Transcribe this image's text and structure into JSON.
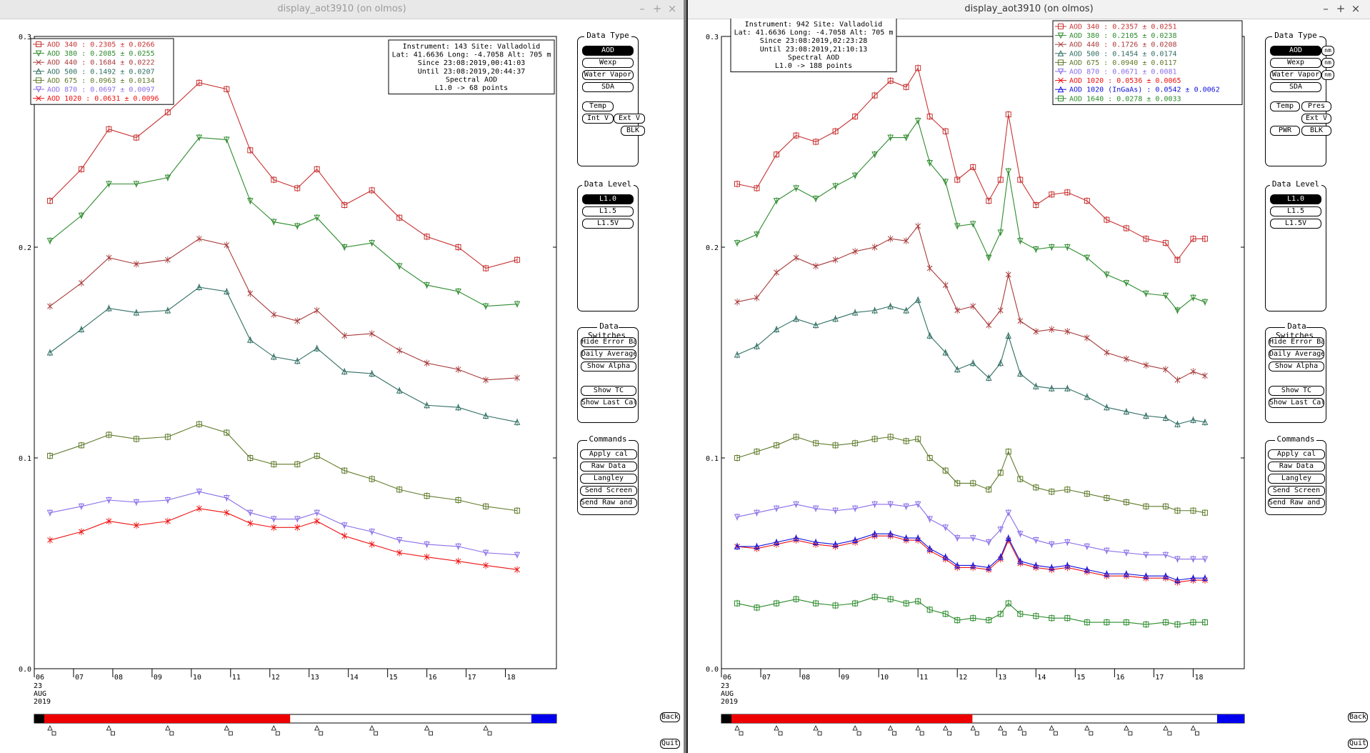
{
  "windows": [
    {
      "id": "L",
      "title": "display_aot3910 (on olmos)",
      "info": [
        "Instrument: 143 Site: Valladolid",
        "Lat: 41.6636 Long: -4.7058 Alt: 705 m",
        "Since 23:08:2019,00:41:03",
        "Until 23:08:2019,20:44:37",
        "Spectral AOD",
        "L1.0 -> 68 points"
      ],
      "legend": [
        {
          "text": "AOD 340   : 0.2305 ± 0.0266",
          "color": "#c83232",
          "marker": "square"
        },
        {
          "text": "AOD 380   : 0.2085 ± 0.0255",
          "color": "#2e8b2e",
          "marker": "tri-down"
        },
        {
          "text": "AOD 440   : 0.1684 ± 0.0222",
          "color": "#a83a3a",
          "marker": "x"
        },
        {
          "text": "AOD 500   : 0.1492 ± 0.0207",
          "color": "#2f6e62",
          "marker": "tri-up"
        },
        {
          "text": "AOD 675   : 0.0963 ± 0.0134",
          "color": "#5f7a2a",
          "marker": "square"
        },
        {
          "text": "AOD 870   : 0.0697 ± 0.0097",
          "color": "#8a6ee8",
          "marker": "tri-down"
        },
        {
          "text": "AOD 1020  : 0.0631 ± 0.0096",
          "color": "#ee1111",
          "marker": "x"
        }
      ],
      "show_nm_buttons": false,
      "data_type_buttons": [
        {
          "label": "AOD",
          "selected": true
        },
        {
          "label": "Wexp"
        },
        {
          "label": "Water Vapor"
        },
        {
          "label": "SDA"
        }
      ],
      "extra_buttons": [
        "Temp",
        "Int V",
        "Ext V",
        "BLK"
      ]
    },
    {
      "id": "R",
      "title": "display_aot3910 (on olmos)",
      "info": [
        "Instrument: 942 Site: Valladolid",
        "Lat: 41.6636 Long: -4.7058 Alt: 705 m",
        "Since 23:08:2019,02:23:28",
        "Until 23:08:2019,21:10:13",
        "Spectral AOD",
        "L1.0 -> 188 points"
      ],
      "legend": [
        {
          "text": "AOD 340   : 0.2357 ± 0.0251",
          "color": "#c83232",
          "marker": "square"
        },
        {
          "text": "AOD 380   : 0.2105 ± 0.0238",
          "color": "#2e8b2e",
          "marker": "tri-down"
        },
        {
          "text": "AOD 440   : 0.1726 ± 0.0208",
          "color": "#a83a3a",
          "marker": "x"
        },
        {
          "text": "AOD 500   : 0.1454 ± 0.0174",
          "color": "#2f6e62",
          "marker": "tri-up"
        },
        {
          "text": "AOD 675   : 0.0940 ± 0.0117",
          "color": "#5f7a2a",
          "marker": "square"
        },
        {
          "text": "AOD 870   : 0.0671 ± 0.0081",
          "color": "#8a6ee8",
          "marker": "tri-down"
        },
        {
          "text": "AOD 1020  : 0.0536 ± 0.0065",
          "color": "#ee1111",
          "marker": "x"
        },
        {
          "text": "AOD 1020 (InGaAs)  : 0.0542 ± 0.0062",
          "color": "#1111dd",
          "marker": "tri-up"
        },
        {
          "text": "AOD 1640  : 0.0278 ± 0.0033",
          "color": "#2a8a2a",
          "marker": "square"
        }
      ],
      "show_nm_buttons": true,
      "data_type_buttons": [
        {
          "label": "AOD",
          "selected": true
        },
        {
          "label": "Wexp"
        },
        {
          "label": "Water Vapor"
        },
        {
          "label": "SDA"
        }
      ],
      "extra_buttons": [
        "Temp",
        "Pres",
        "Ext V",
        "PWR",
        "BLK"
      ]
    }
  ],
  "panels": {
    "data_type_title": "Data Type",
    "nm_label": "nm",
    "data_level_title": "Data Level",
    "data_level_buttons": [
      {
        "label": "L1.0",
        "selected": true
      },
      {
        "label": "L1.5"
      },
      {
        "label": "L1.5V"
      }
    ],
    "data_switches_title": "Data Switches",
    "data_switches_buttons": [
      "Hide Error Bars",
      "Daily Averages",
      "Show Alpha",
      "Show TC",
      "Show Last Cal"
    ],
    "commands_title": "Commands",
    "commands_buttons": [
      "Apply cal",
      "Raw Data",
      "Langley",
      "Send Screen",
      "Send Raw and AOD"
    ]
  },
  "side_buttons": {
    "back": "Back",
    "quit": "Quit"
  },
  "axis": {
    "date_lines": [
      "23",
      "AUG",
      "2019"
    ]
  },
  "chart_data": [
    {
      "type": "line",
      "x_unit": "hour of day (UTC), 23 Aug 2019",
      "xlim": [
        6,
        19.3
      ],
      "ylim": [
        0,
        0.3
      ],
      "x_ticks": [
        6,
        7,
        8,
        9,
        10,
        11,
        12,
        13,
        14,
        15,
        16,
        17,
        18
      ],
      "x_tick_labels": [
        "06",
        "07",
        "08",
        "09",
        "10",
        "11",
        "12",
        "13",
        "14",
        "15",
        "16",
        "17",
        "18"
      ],
      "y_ticks": [
        0,
        0.1,
        0.2,
        0.3
      ],
      "y_tick_labels": [
        "0.0",
        "0.1",
        "0.2",
        "0.3"
      ],
      "x": [
        6.4,
        7.2,
        7.9,
        8.6,
        9.4,
        10.2,
        10.9,
        11.5,
        12.1,
        12.7,
        13.2,
        13.9,
        14.6,
        15.3,
        16,
        16.8,
        17.5,
        18.3
      ],
      "series": [
        {
          "name": "AOD 340",
          "color": "#c83232",
          "marker": "square",
          "values": [
            0.222,
            0.237,
            0.256,
            0.252,
            0.264,
            0.278,
            0.275,
            0.246,
            0.232,
            0.228,
            0.237,
            0.22,
            0.227,
            0.214,
            0.205,
            0.2,
            0.19,
            0.194
          ]
        },
        {
          "name": "AOD 380",
          "color": "#2e8b2e",
          "marker": "tri-down",
          "values": [
            0.203,
            0.215,
            0.23,
            0.23,
            0.233,
            0.252,
            0.251,
            0.222,
            0.212,
            0.21,
            0.214,
            0.2,
            0.202,
            0.191,
            0.182,
            0.179,
            0.172,
            0.173
          ]
        },
        {
          "name": "AOD 440",
          "color": "#a83a3a",
          "marker": "x",
          "values": [
            0.172,
            0.183,
            0.195,
            0.192,
            0.194,
            0.204,
            0.201,
            0.178,
            0.168,
            0.165,
            0.17,
            0.158,
            0.159,
            0.151,
            0.145,
            0.142,
            0.137,
            0.138
          ]
        },
        {
          "name": "AOD 500",
          "color": "#2f6e62",
          "marker": "tri-up",
          "values": [
            0.15,
            0.161,
            0.171,
            0.169,
            0.17,
            0.181,
            0.179,
            0.156,
            0.148,
            0.146,
            0.152,
            0.141,
            0.14,
            0.132,
            0.125,
            0.124,
            0.12,
            0.117
          ]
        },
        {
          "name": "AOD 675",
          "color": "#5f7a2a",
          "marker": "square",
          "values": [
            0.101,
            0.106,
            0.111,
            0.109,
            0.11,
            0.116,
            0.112,
            0.1,
            0.097,
            0.097,
            0.101,
            0.094,
            0.09,
            0.085,
            0.082,
            0.08,
            0.077,
            0.075
          ]
        },
        {
          "name": "AOD 870",
          "color": "#8a6ee8",
          "marker": "tri-down",
          "values": [
            0.074,
            0.077,
            0.08,
            0.079,
            0.08,
            0.084,
            0.081,
            0.074,
            0.071,
            0.071,
            0.074,
            0.068,
            0.065,
            0.061,
            0.059,
            0.058,
            0.055,
            0.054
          ]
        },
        {
          "name": "AOD 1020",
          "color": "#ee1111",
          "marker": "x",
          "values": [
            0.061,
            0.065,
            0.07,
            0.068,
            0.07,
            0.076,
            0.074,
            0.069,
            0.067,
            0.067,
            0.07,
            0.063,
            0.059,
            0.055,
            0.053,
            0.051,
            0.049,
            0.047
          ]
        }
      ]
    },
    {
      "type": "line",
      "x_unit": "hour of day (UTC), 23 Aug 2019",
      "xlim": [
        6,
        19.3
      ],
      "ylim": [
        0,
        0.3
      ],
      "x_ticks": [
        6,
        7,
        8,
        9,
        10,
        11,
        12,
        13,
        14,
        15,
        16,
        17,
        18
      ],
      "x_tick_labels": [
        "06",
        "07",
        "08",
        "09",
        "10",
        "11",
        "12",
        "13",
        "14",
        "15",
        "16",
        "17",
        "18"
      ],
      "y_ticks": [
        0,
        0.1,
        0.2,
        0.3
      ],
      "y_tick_labels": [
        "0.0",
        "0.1",
        "0.2",
        "0.3"
      ],
      "x": [
        6.4,
        6.9,
        7.4,
        7.9,
        8.4,
        8.9,
        9.4,
        9.9,
        10.3,
        10.7,
        11.0,
        11.3,
        11.7,
        12.0,
        12.4,
        12.8,
        13.1,
        13.3,
        13.6,
        14.0,
        14.4,
        14.8,
        15.3,
        15.8,
        16.3,
        16.8,
        17.3,
        17.6,
        18.0,
        18.3
      ],
      "series": [
        {
          "name": "AOD 340",
          "color": "#c83232",
          "marker": "square",
          "values": [
            0.23,
            0.228,
            0.244,
            0.253,
            0.25,
            0.255,
            0.262,
            0.272,
            0.279,
            0.276,
            0.285,
            0.262,
            0.255,
            0.232,
            0.238,
            0.222,
            0.232,
            0.263,
            0.232,
            0.22,
            0.225,
            0.226,
            0.222,
            0.213,
            0.209,
            0.204,
            0.202,
            0.194,
            0.204,
            0.204
          ]
        },
        {
          "name": "AOD 380",
          "color": "#2e8b2e",
          "marker": "tri-down",
          "values": [
            0.202,
            0.206,
            0.222,
            0.228,
            0.223,
            0.229,
            0.234,
            0.244,
            0.252,
            0.252,
            0.26,
            0.24,
            0.231,
            0.21,
            0.211,
            0.195,
            0.207,
            0.236,
            0.203,
            0.199,
            0.2,
            0.2,
            0.195,
            0.187,
            0.183,
            0.178,
            0.177,
            0.17,
            0.176,
            0.174
          ]
        },
        {
          "name": "AOD 440",
          "color": "#a83a3a",
          "marker": "x",
          "values": [
            0.174,
            0.176,
            0.188,
            0.195,
            0.191,
            0.194,
            0.198,
            0.2,
            0.204,
            0.203,
            0.21,
            0.19,
            0.182,
            0.17,
            0.172,
            0.163,
            0.17,
            0.187,
            0.165,
            0.16,
            0.161,
            0.16,
            0.157,
            0.15,
            0.147,
            0.144,
            0.142,
            0.137,
            0.141,
            0.139
          ]
        },
        {
          "name": "AOD 500",
          "color": "#2f6e62",
          "marker": "tri-up",
          "values": [
            0.149,
            0.153,
            0.161,
            0.166,
            0.163,
            0.166,
            0.169,
            0.17,
            0.172,
            0.17,
            0.175,
            0.158,
            0.15,
            0.142,
            0.145,
            0.138,
            0.145,
            0.158,
            0.14,
            0.134,
            0.133,
            0.133,
            0.129,
            0.124,
            0.122,
            0.12,
            0.119,
            0.116,
            0.118,
            0.117
          ]
        },
        {
          "name": "AOD 675",
          "color": "#5f7a2a",
          "marker": "square",
          "values": [
            0.1,
            0.103,
            0.106,
            0.11,
            0.107,
            0.106,
            0.107,
            0.109,
            0.11,
            0.108,
            0.109,
            0.1,
            0.094,
            0.088,
            0.088,
            0.085,
            0.093,
            0.103,
            0.09,
            0.086,
            0.084,
            0.085,
            0.083,
            0.081,
            0.079,
            0.077,
            0.077,
            0.075,
            0.075,
            0.074
          ]
        },
        {
          "name": "AOD 870",
          "color": "#8a6ee8",
          "marker": "tri-down",
          "values": [
            0.072,
            0.074,
            0.076,
            0.078,
            0.076,
            0.075,
            0.076,
            0.078,
            0.078,
            0.077,
            0.078,
            0.071,
            0.067,
            0.062,
            0.062,
            0.06,
            0.066,
            0.074,
            0.064,
            0.061,
            0.059,
            0.06,
            0.058,
            0.056,
            0.055,
            0.054,
            0.054,
            0.052,
            0.052,
            0.052
          ]
        },
        {
          "name": "AOD 1020",
          "color": "#ee1111",
          "marker": "x",
          "values": [
            0.058,
            0.057,
            0.059,
            0.061,
            0.059,
            0.058,
            0.06,
            0.063,
            0.063,
            0.061,
            0.061,
            0.056,
            0.052,
            0.048,
            0.048,
            0.047,
            0.052,
            0.061,
            0.05,
            0.048,
            0.047,
            0.048,
            0.046,
            0.044,
            0.044,
            0.043,
            0.043,
            0.041,
            0.042,
            0.042
          ]
        },
        {
          "name": "AOD 1020 (InGaAs)",
          "color": "#1111dd",
          "marker": "tri-up",
          "values": [
            0.058,
            0.058,
            0.06,
            0.062,
            0.06,
            0.059,
            0.061,
            0.064,
            0.064,
            0.062,
            0.062,
            0.057,
            0.053,
            0.049,
            0.049,
            0.048,
            0.053,
            0.062,
            0.051,
            0.049,
            0.048,
            0.049,
            0.047,
            0.045,
            0.045,
            0.044,
            0.044,
            0.042,
            0.043,
            0.043
          ]
        },
        {
          "name": "AOD 1640",
          "color": "#2a8a2a",
          "marker": "square",
          "values": [
            0.031,
            0.029,
            0.031,
            0.033,
            0.031,
            0.03,
            0.031,
            0.034,
            0.033,
            0.031,
            0.032,
            0.028,
            0.026,
            0.023,
            0.024,
            0.023,
            0.026,
            0.031,
            0.026,
            0.025,
            0.024,
            0.024,
            0.022,
            0.022,
            0.022,
            0.021,
            0.022,
            0.021,
            0.022,
            0.022
          ]
        }
      ]
    }
  ],
  "timebar": [
    {
      "red_end_frac": 0.49,
      "blue_start_frac": 0.952
    },
    {
      "red_end_frac": 0.48,
      "blue_start_frac": 0.948
    }
  ]
}
